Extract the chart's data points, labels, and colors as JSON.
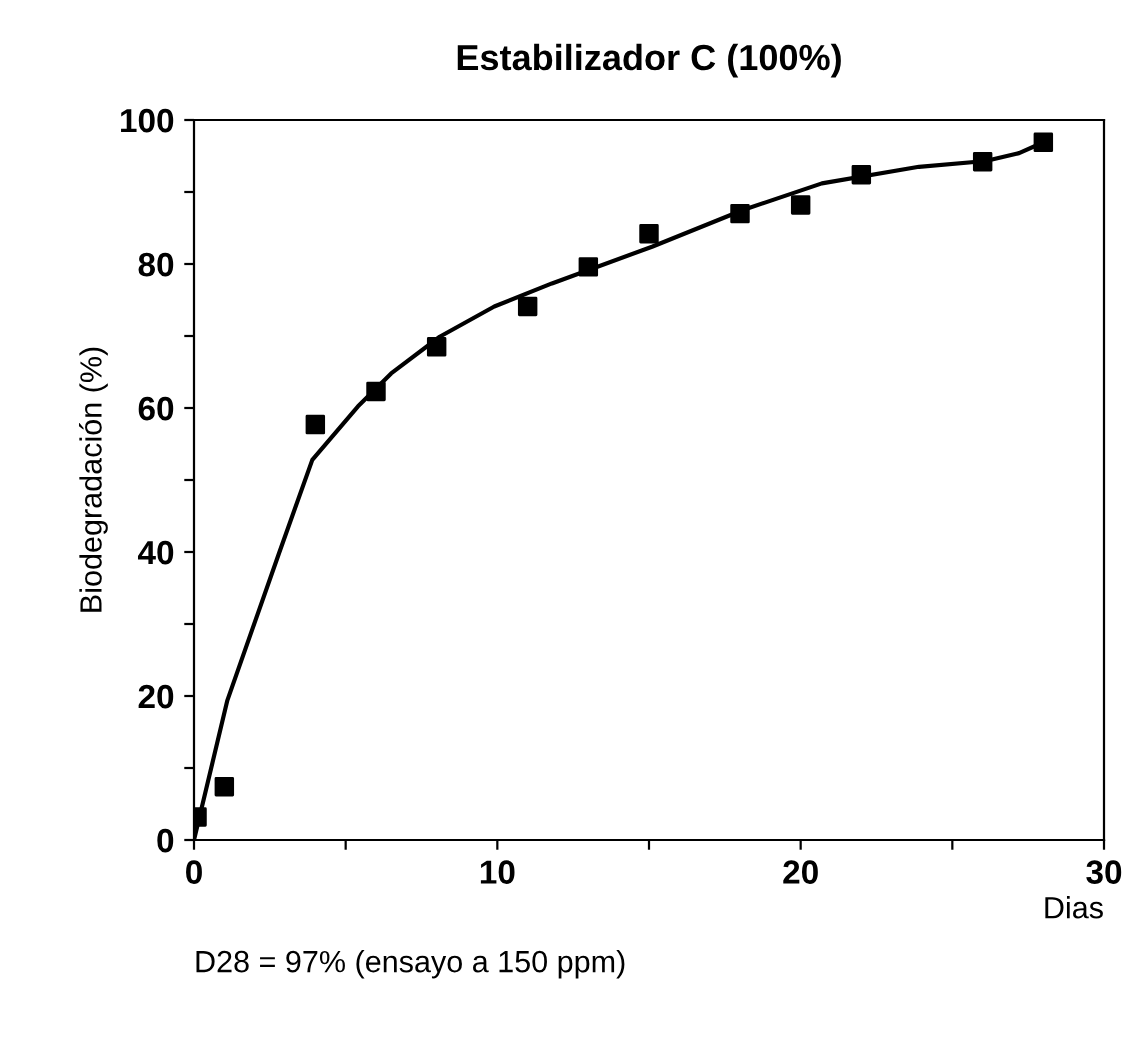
{
  "chart_data": {
    "type": "scatter",
    "title": "Estabilizador C (100%)",
    "xlabel": "Dias",
    "ylabel": "Biodegradación (%)",
    "series": [
      {
        "color": "#000000",
        "marker": "square",
        "x": [
          0.1,
          1,
          4,
          6,
          8,
          11,
          13,
          15,
          18,
          20,
          22,
          26,
          28
        ],
        "values": [
          3.2,
          7.4,
          57.7,
          62.3,
          68.5,
          74.1,
          79.6,
          84.2,
          87,
          88.2,
          92.4,
          94.2,
          96.9
        ]
      },
      {
        "type": "line",
        "color": "#000000",
        "marker": "none",
        "x": [
          0,
          1.1,
          2.8,
          3.9,
          5.4,
          6.5,
          8.1,
          9.9,
          11.8,
          15.1,
          18.1,
          20.7,
          23.9,
          26.1,
          27.2,
          28
        ],
        "values": [
          0,
          19.4,
          39.8,
          52.8,
          60.2,
          64.8,
          69.9,
          74.1,
          77.3,
          82.4,
          87.5,
          91.2,
          93.5,
          94.3,
          95.4,
          96.9
        ]
      }
    ],
    "xlim": [
      0,
      30
    ],
    "ylim": [
      0,
      100
    ],
    "xticks": [
      0,
      {
        "value": 5,
        "label": null
      },
      10,
      {
        "value": 15,
        "label": null
      },
      20,
      {
        "value": 25,
        "label": null
      },
      30
    ],
    "yticks": [
      0,
      {
        "value": 10,
        "label": null
      },
      20,
      {
        "value": 30,
        "label": null
      },
      40,
      {
        "value": 50,
        "label": null
      },
      60,
      {
        "value": 70,
        "label": null
      },
      80,
      {
        "value": 90,
        "label": null
      },
      100
    ],
    "grid": false,
    "legend": false,
    "annotations": [
      "D28 = 97% (ensayo a 150 ppm)"
    ]
  }
}
